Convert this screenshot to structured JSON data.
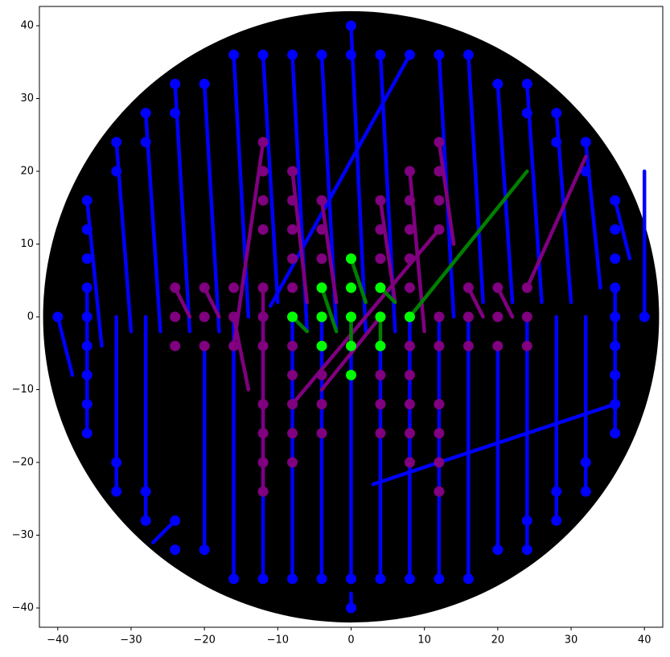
{
  "chart_data": {
    "type": "scatter",
    "xlim": [
      -42.5,
      42.5
    ],
    "ylim": [
      -42.65,
      42.65
    ],
    "xticks": [
      {
        "value": -40,
        "label": "−40"
      },
      {
        "value": -30,
        "label": "−30"
      },
      {
        "value": -20,
        "label": "−20"
      },
      {
        "value": -10,
        "label": "−10"
      },
      0,
      10,
      20,
      30,
      40
    ],
    "yticks": [
      {
        "value": -40,
        "label": "−40"
      },
      {
        "value": -30,
        "label": "−30"
      },
      {
        "value": -20,
        "label": "−20"
      },
      {
        "value": -10,
        "label": "−10"
      },
      0,
      10,
      20,
      30,
      40
    ],
    "background_circle": {
      "radius": 42,
      "color": "#000000"
    },
    "series": [
      {
        "color": "#0000ff",
        "x": [
          -40,
          -36,
          -36,
          -36,
          -36,
          -36,
          -36,
          -36,
          -36,
          -36,
          -32,
          -32,
          -32,
          -32,
          -28,
          -28,
          -28,
          -28,
          -24,
          -24,
          -24,
          -24,
          -20,
          -20,
          -16,
          -16,
          -12,
          -12,
          -8,
          -8,
          -4,
          -4,
          0,
          0,
          0,
          0,
          4,
          4,
          8,
          8,
          12,
          12,
          16,
          16,
          20,
          20,
          24,
          24,
          24,
          24,
          28,
          28,
          28,
          28,
          32,
          32,
          32,
          32,
          36,
          36,
          36,
          36,
          36,
          36,
          36,
          36,
          36,
          40
        ],
        "y": [
          0,
          16,
          12,
          8,
          4,
          0,
          -4,
          -8,
          -12,
          -16,
          24,
          20,
          -20,
          -24,
          28,
          24,
          -24,
          -28,
          32,
          28,
          -28,
          -32,
          32,
          -32,
          36,
          -36,
          36,
          -36,
          36,
          -36,
          36,
          -36,
          40,
          36,
          -36,
          -40,
          36,
          -36,
          36,
          -36,
          36,
          -36,
          36,
          -36,
          32,
          -32,
          32,
          28,
          -28,
          -32,
          28,
          24,
          -24,
          -28,
          24,
          20,
          -20,
          -24,
          16,
          12,
          8,
          4,
          0,
          -4,
          -8,
          -12,
          -16,
          0
        ],
        "segments": [
          [
            -40,
            0,
            -38,
            -8
          ],
          [
            -36,
            16,
            -34,
            -4
          ],
          [
            -36,
            4,
            -36,
            -16
          ],
          [
            -32,
            24,
            -30,
            -2
          ],
          [
            -32,
            -24,
            -32,
            0
          ],
          [
            -28,
            28,
            -26,
            -2
          ],
          [
            -28,
            -28,
            -28,
            0
          ],
          [
            -24,
            32,
            -22,
            -2
          ],
          [
            -24,
            -28,
            -27,
            -31
          ],
          [
            -20,
            32,
            -18,
            -2
          ],
          [
            -20,
            -32,
            -20,
            -4
          ],
          [
            -16,
            36,
            -14,
            0
          ],
          [
            -16,
            -36,
            -16,
            0
          ],
          [
            -12,
            36,
            -10,
            2
          ],
          [
            -12,
            -36,
            -12,
            0
          ],
          [
            -8,
            36,
            -6,
            -2
          ],
          [
            -8,
            -36,
            -8,
            0
          ],
          [
            -4,
            36,
            -2,
            -2
          ],
          [
            -4,
            -36,
            -4,
            0
          ],
          [
            0,
            40,
            2,
            -2
          ],
          [
            0,
            -36,
            0,
            0
          ],
          [
            0,
            -40,
            0,
            -38
          ],
          [
            4,
            36,
            6,
            -2
          ],
          [
            4,
            -36,
            4,
            -4
          ],
          [
            8,
            36,
            -11,
            1.5
          ],
          [
            8,
            -36,
            8,
            0
          ],
          [
            12,
            36,
            14,
            0
          ],
          [
            12,
            -36,
            12,
            0
          ],
          [
            16,
            36,
            18,
            2
          ],
          [
            16,
            -36,
            16,
            0
          ],
          [
            20,
            32,
            22,
            2
          ],
          [
            20,
            -32,
            20,
            -4
          ],
          [
            24,
            32,
            26,
            2
          ],
          [
            24,
            -32,
            24,
            0
          ],
          [
            28,
            28,
            30,
            2
          ],
          [
            28,
            -28,
            28,
            0
          ],
          [
            32,
            24,
            34,
            4
          ],
          [
            32,
            -24,
            32,
            0
          ],
          [
            36,
            16,
            38,
            8
          ],
          [
            36,
            -12,
            3,
            -23
          ],
          [
            36,
            4,
            36,
            -16
          ],
          [
            40,
            0,
            40,
            20
          ]
        ]
      },
      {
        "color": "#800080",
        "x": [
          -24,
          -24,
          -24,
          -20,
          -20,
          -20,
          -16,
          -16,
          -16,
          -12,
          -12,
          -12,
          -12,
          -12,
          -12,
          -12,
          -12,
          -12,
          -12,
          -12,
          -8,
          -8,
          -8,
          -8,
          -8,
          -8,
          -8,
          -8,
          -8,
          -8,
          -8,
          -4,
          -4,
          -4,
          -4,
          -4,
          -4,
          -4,
          -4,
          -4,
          4,
          4,
          4,
          4,
          4,
          4,
          4,
          4,
          4,
          8,
          8,
          8,
          8,
          8,
          8,
          8,
          8,
          8,
          8,
          8,
          12,
          12,
          12,
          12,
          12,
          12,
          12,
          12,
          12,
          12,
          16,
          16,
          16,
          20,
          20,
          20,
          24,
          24,
          24
        ],
        "y": [
          4,
          0,
          -4,
          4,
          0,
          -4,
          4,
          0,
          -4,
          24,
          20,
          16,
          12,
          4,
          0,
          -4,
          -12,
          -16,
          -20,
          -24,
          20,
          16,
          12,
          8,
          4,
          0,
          -4,
          -8,
          -12,
          -16,
          -20,
          16,
          12,
          8,
          4,
          0,
          -4,
          -8,
          -12,
          -16,
          16,
          12,
          8,
          4,
          0,
          -4,
          -8,
          -12,
          -16,
          20,
          16,
          12,
          8,
          4,
          0,
          -4,
          -8,
          -12,
          -16,
          -20,
          24,
          20,
          16,
          12,
          0,
          -4,
          -12,
          -16,
          -20,
          -24,
          4,
          0,
          -4,
          4,
          0,
          -4,
          4,
          0,
          -4
        ],
        "segments": [
          [
            -24,
            4,
            -22,
            0
          ],
          [
            -20,
            4,
            -18,
            0
          ],
          [
            -12,
            24,
            -16,
            -4
          ],
          [
            -16,
            0,
            -14,
            -10
          ],
          [
            -12,
            4,
            -12,
            -24
          ],
          [
            -8,
            20,
            -6,
            2
          ],
          [
            -8,
            -12,
            12,
            12
          ],
          [
            -4,
            -10,
            4,
            0
          ],
          [
            -4,
            16,
            -2,
            2
          ],
          [
            4,
            16,
            6,
            2
          ],
          [
            8,
            20,
            10,
            -2
          ],
          [
            12,
            24,
            14,
            10
          ],
          [
            16,
            4,
            18,
            0
          ],
          [
            20,
            4,
            22,
            0
          ],
          [
            24,
            4,
            32,
            22
          ]
        ]
      },
      {
        "color": "#00ff00",
        "line_color": "#008000",
        "x": [
          0,
          0,
          0,
          0,
          0,
          -4,
          -4,
          -4,
          4,
          4,
          4,
          -8,
          8
        ],
        "y": [
          8,
          4,
          0,
          -4,
          -8,
          4,
          0,
          -4,
          4,
          0,
          -4,
          0,
          0
        ],
        "segments": [
          [
            0,
            8,
            2,
            2
          ],
          [
            -4,
            4,
            -2,
            -2
          ],
          [
            4,
            4,
            6,
            2
          ],
          [
            -8,
            0,
            -6,
            -2
          ],
          [
            8,
            0,
            24,
            20
          ],
          [
            4,
            0,
            4,
            -4
          ],
          [
            0,
            0,
            0,
            -4
          ]
        ]
      }
    ]
  }
}
